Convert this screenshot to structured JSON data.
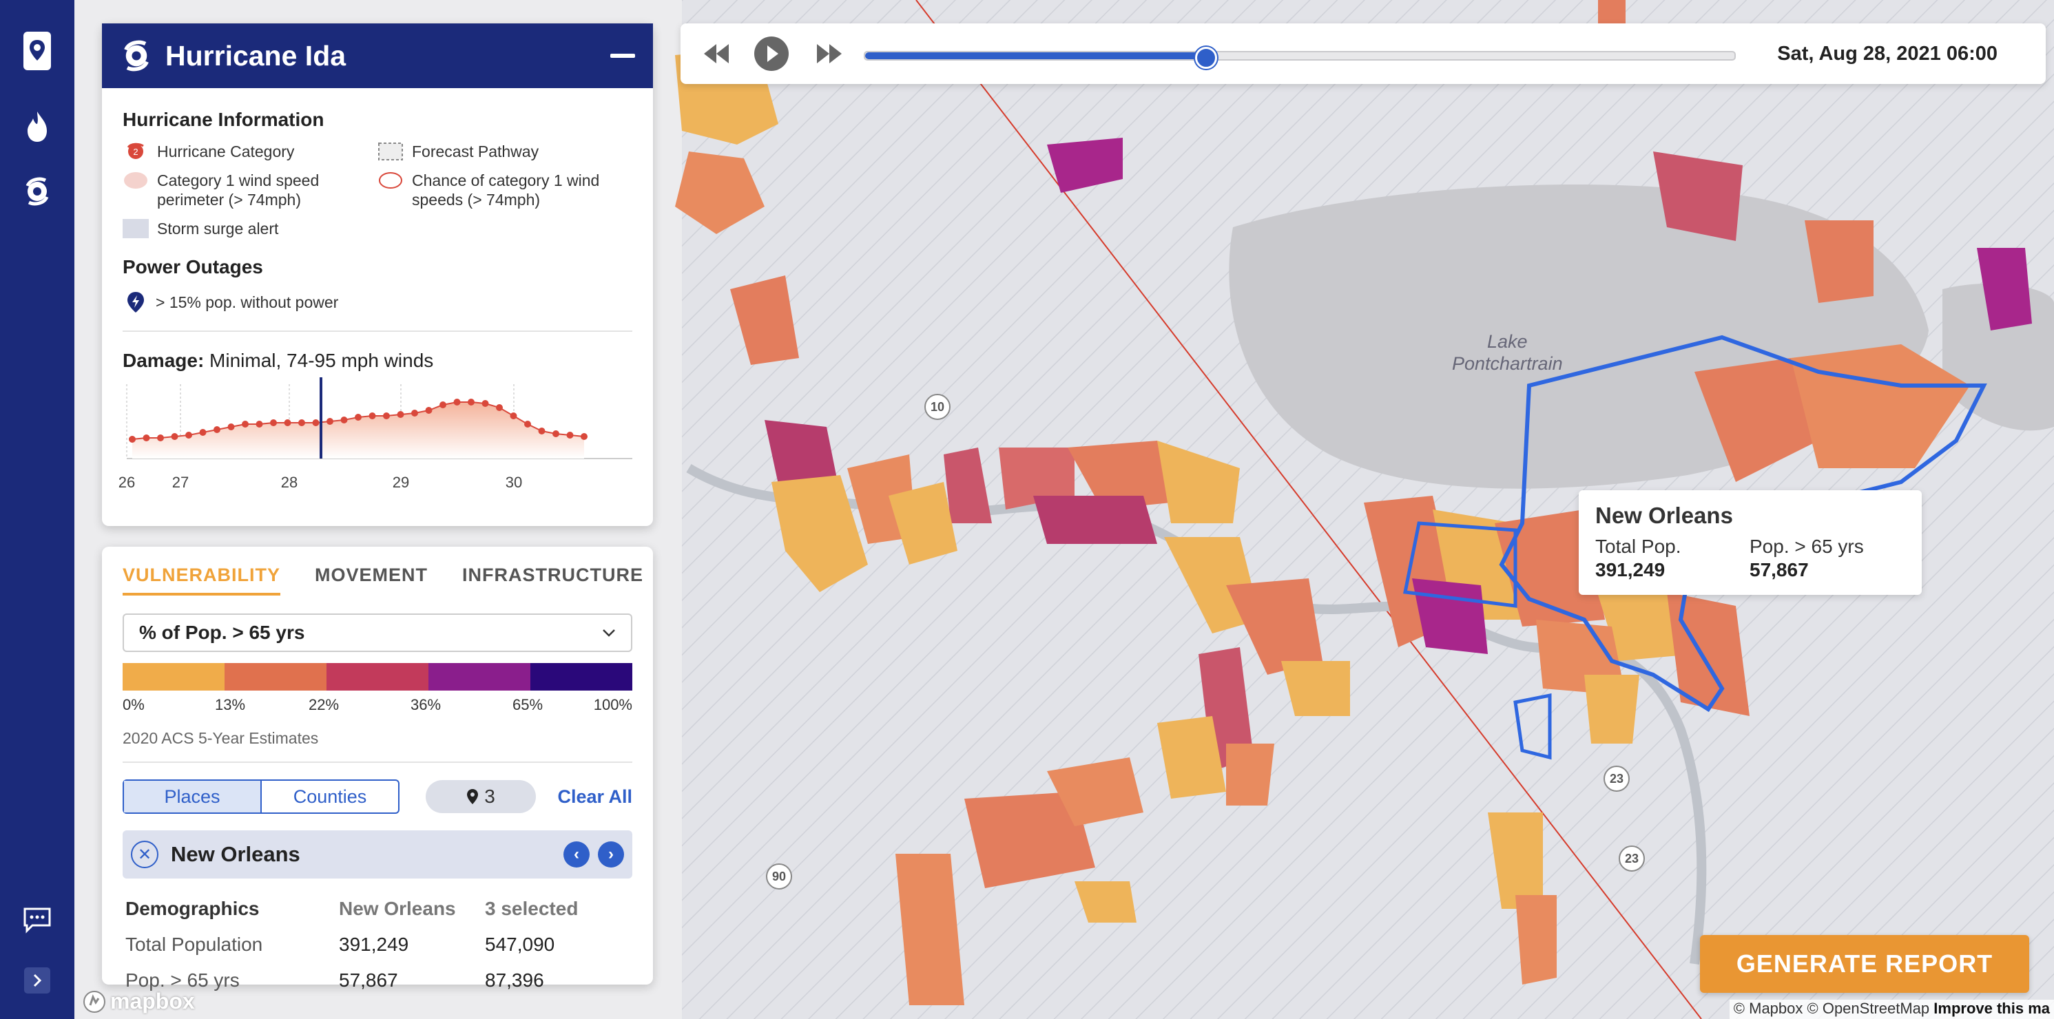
{
  "panel": {
    "title": "Hurricane Ida",
    "hurricane_info_title": "Hurricane Information",
    "legend": [
      {
        "label": "Hurricane Category",
        "icon": "hurricane-category-icon",
        "badge": "2"
      },
      {
        "label": "Forecast Pathway",
        "icon": "forecast-pathway-swatch"
      },
      {
        "label": "Category 1 wind speed perimeter (> 74mph)",
        "icon": "wind-perimeter-swatch"
      },
      {
        "label": "Chance of category 1 wind speeds (> 74mph)",
        "icon": "wind-chance-swatch"
      },
      {
        "label": "Storm surge alert",
        "icon": "storm-surge-swatch"
      }
    ],
    "power_title": "Power Outages",
    "power_label": "> 15% pop. without power",
    "damage_label": "Damage:",
    "damage_value": "Minimal, 74-95 mph winds",
    "chart_ticks": [
      "26",
      "27",
      "28",
      "29",
      "30"
    ]
  },
  "vulnerability": {
    "tabs": [
      "VULNERABILITY",
      "MOVEMENT",
      "INFRASTRUCTURE"
    ],
    "active_tab": "VULNERABILITY",
    "metric": "% of Pop. > 65 yrs",
    "scale_colors": [
      "#f0ac4a",
      "#e0714e",
      "#c23a5b",
      "#8a1e8c",
      "#2a087a"
    ],
    "scale_labels": [
      "0%",
      "13%",
      "22%",
      "36%",
      "65%",
      "100%"
    ],
    "source": "2020 ACS 5-Year Estimates",
    "toggle": [
      "Places",
      "Counties"
    ],
    "selected_count": "3",
    "clear_all": "Clear All",
    "place": "New Orleans",
    "demographics": {
      "headers": [
        "Demographics",
        "New Orleans",
        "3 selected"
      ],
      "rows": [
        [
          "Total Population",
          "391,249",
          "547,090"
        ],
        [
          "Pop. > 65 yrs",
          "57,867",
          "87,396"
        ]
      ]
    }
  },
  "timeline": {
    "date": "Sat, Aug 28, 2021 06:00",
    "progress": 0.39
  },
  "tooltip": {
    "title": "New Orleans",
    "label1": "Total Pop.",
    "value1": "391,249",
    "label2": "Pop. > 65 yrs",
    "value2": "57,867"
  },
  "map": {
    "lake_label_1": "Lake",
    "lake_label_2": "Pontchartrain",
    "route_shields": [
      "10",
      "90",
      "23",
      "23"
    ]
  },
  "report_button": "GENERATE REPORT",
  "attribution": {
    "mapbox": "© Mapbox",
    "osm": "© OpenStreetMap",
    "improve": "Improve this ma"
  },
  "logo": "mapbox",
  "colors": {
    "nav": "#1b2a7a",
    "accent": "#2f5fc9",
    "orange": "#e99633"
  }
}
